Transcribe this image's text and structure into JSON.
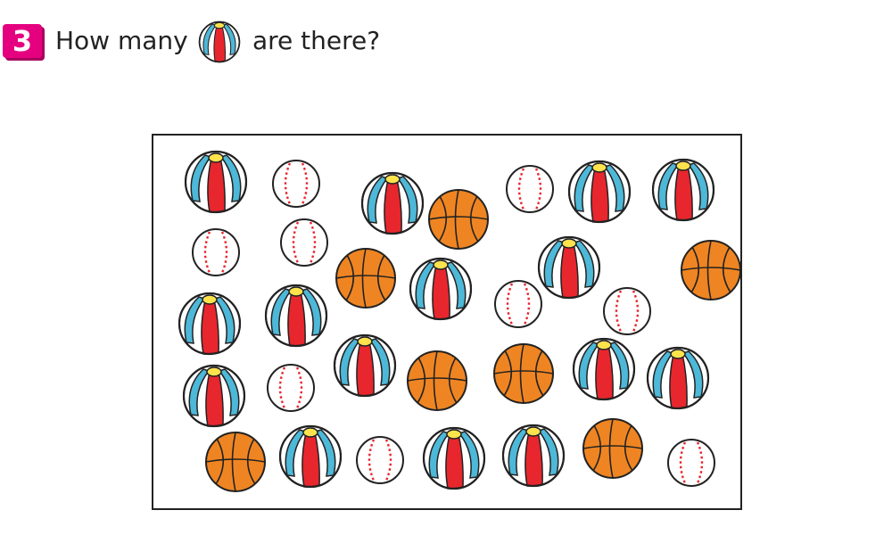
{
  "question": {
    "number": "3",
    "text_before": "How many",
    "text_after": "are there?",
    "icon": "beach-ball-icon"
  },
  "colors": {
    "badge": "#e5007f",
    "beach_ball_red": "#e8262d",
    "beach_ball_blue": "#4db8d8",
    "beach_ball_cap": "#ffe34d",
    "basketball": "#ef8522",
    "baseball_stitch": "#e8262d"
  }
}
